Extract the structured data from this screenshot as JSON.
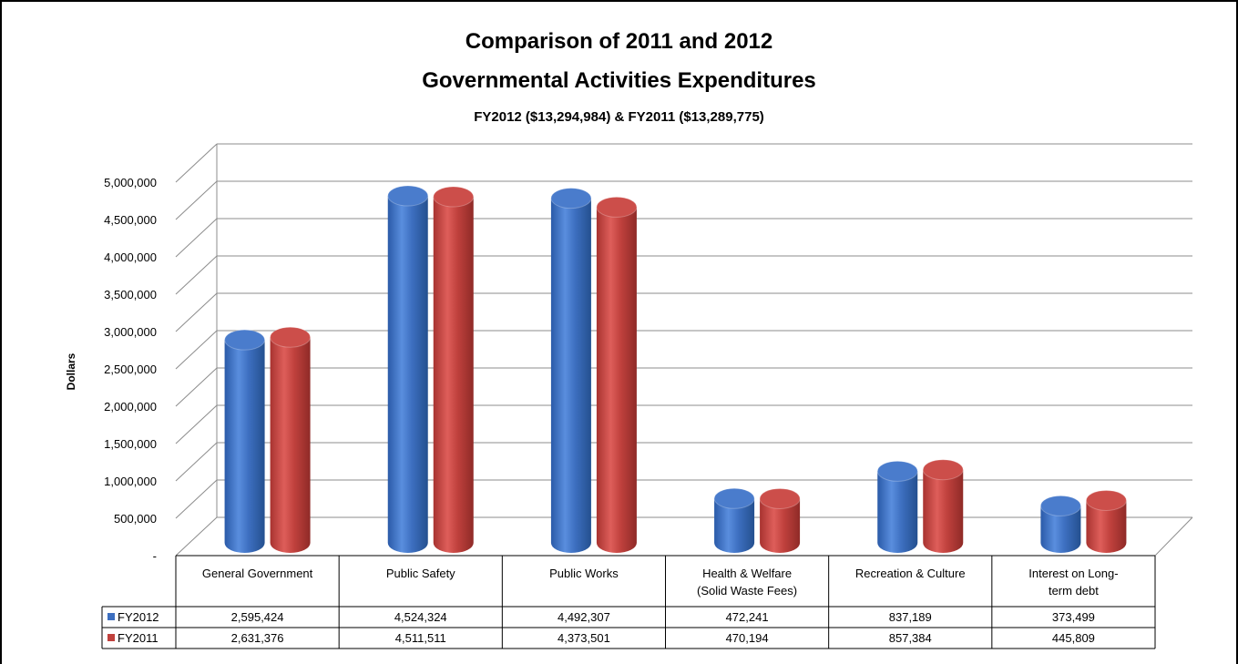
{
  "chart_data": {
    "type": "bar",
    "title": "Comparison of 2011 and 2012",
    "title_line2": "Governmental Activities Expenditures",
    "subtitle": "FY2012 ($13,294,984) & FY2011 ($13,289,775)",
    "ylabel": "Dollars",
    "ylim": [
      0,
      5000000
    ],
    "y_ticks": [
      0,
      500000,
      1000000,
      1500000,
      2000000,
      2500000,
      3000000,
      3500000,
      4000000,
      4500000,
      5000000
    ],
    "y_tick_labels": [
      "-",
      "500,000",
      "1,000,000",
      "1,500,000",
      "2,000,000",
      "2,500,000",
      "3,000,000",
      "3,500,000",
      "4,000,000",
      "4,500,000",
      "5,000,000"
    ],
    "grid": true,
    "legend": "data-table",
    "categories": [
      [
        "General Government"
      ],
      [
        "Public Safety"
      ],
      [
        "Public Works"
      ],
      [
        "Health & Welfare",
        "(Solid Waste Fees)"
      ],
      [
        "Recreation & Culture"
      ],
      [
        "Interest on Long-",
        "term debt"
      ]
    ],
    "series": [
      {
        "name": "FY2012",
        "color": "#3d6fc0",
        "values": [
          2595424,
          4524324,
          4492307,
          472241,
          837189,
          373499
        ],
        "labels": [
          "2,595,424",
          "4,524,324",
          "4,492,307",
          "472,241",
          "837,189",
          "373,499"
        ]
      },
      {
        "name": "FY2011",
        "color": "#c0413d",
        "values": [
          2631376,
          4511511,
          4373501,
          470194,
          857384,
          445809
        ],
        "labels": [
          "2,631,376",
          "4,511,511",
          "4,373,501",
          "470,194",
          "857,384",
          "445,809"
        ]
      }
    ]
  }
}
